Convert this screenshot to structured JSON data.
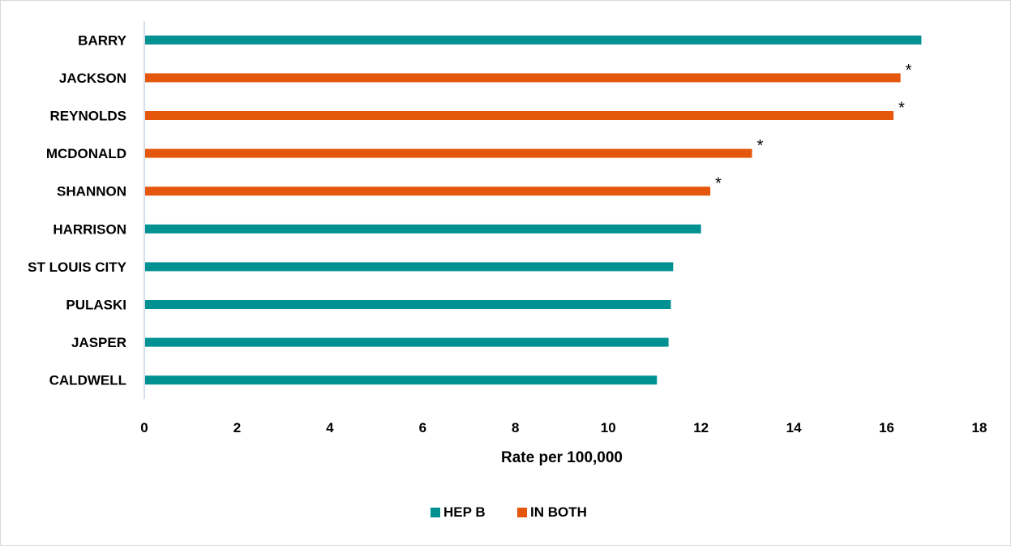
{
  "chart_data": {
    "type": "bar",
    "orientation": "horizontal",
    "categories": [
      "BARRY",
      "JACKSON",
      "REYNOLDS",
      "MCDONALD",
      "SHANNON",
      "HARRISON",
      "ST LOUIS CITY",
      "PULASKI",
      "JASPER",
      "CALDWELL"
    ],
    "values": [
      16.75,
      16.3,
      16.15,
      13.1,
      12.2,
      12.0,
      11.4,
      11.35,
      11.3,
      11.05
    ],
    "groups": [
      "HEP B",
      "IN BOTH",
      "IN BOTH",
      "IN BOTH",
      "IN BOTH",
      "HEP B",
      "HEP B",
      "HEP B",
      "HEP B",
      "HEP B"
    ],
    "annotations": [
      "",
      "*",
      "*",
      "*",
      "*",
      "",
      "",
      "",
      "",
      ""
    ],
    "legend": [
      {
        "name": "HEP B",
        "color": "#009193"
      },
      {
        "name": "IN BOTH",
        "color": "#e4570c"
      }
    ],
    "x_ticks": [
      "0",
      "2",
      "4",
      "6",
      "8",
      "10",
      "12",
      "14",
      "16",
      "18"
    ],
    "xlim": [
      0,
      18
    ],
    "xlabel": "Rate per 100,000",
    "ylabel": "",
    "title": "",
    "grid": false,
    "legend_position": "bottom"
  }
}
